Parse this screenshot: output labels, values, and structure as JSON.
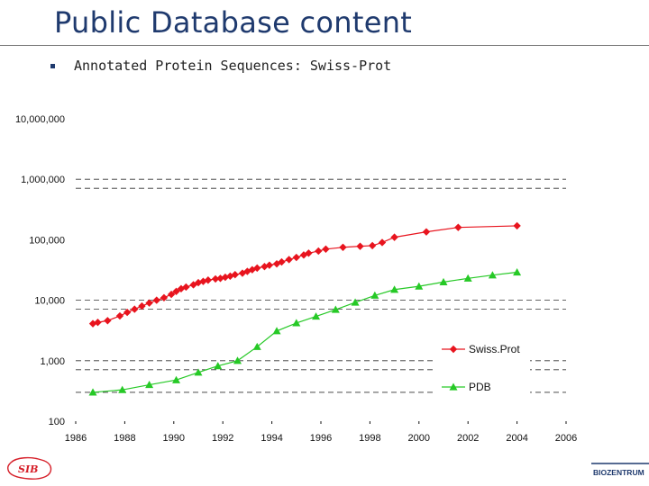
{
  "slide": {
    "title": "Public Database content",
    "bullet": "Annotated Protein Sequences: Swiss-Prot",
    "left_logo_text": "SIB",
    "right_logo_text": "BIOZENTRUM",
    "colors": {
      "title": "#1f3a6e",
      "swissprot": "#e8141e",
      "pdb": "#26c926"
    }
  },
  "chart_data": {
    "type": "line",
    "yscale": "log",
    "ylim": [
      100,
      10000000
    ],
    "xlim": [
      1986,
      2006
    ],
    "x_ticks": [
      "1986",
      "1988",
      "1990",
      "1992",
      "1994",
      "1996",
      "1998",
      "2000",
      "2002",
      "2004",
      "2006"
    ],
    "y_ticks": [
      {
        "value": 10000000,
        "label": "10,000,000"
      },
      {
        "value": 1000000,
        "label": "1,000,000"
      },
      {
        "value": 100000,
        "label": "100,000"
      },
      {
        "value": 10000,
        "label": "10,000"
      },
      {
        "value": 1000,
        "label": "1,000"
      },
      {
        "value": 100,
        "label": "100"
      }
    ],
    "grid": "dashed horizontal",
    "legend_position": "bottom-right",
    "series": [
      {
        "name": "Swiss.Prot",
        "marker": "diamond",
        "color": "#e8141e",
        "x": [
          1986.7,
          1986.9,
          1987.3,
          1987.8,
          1988.1,
          1988.4,
          1988.7,
          1989.0,
          1989.3,
          1989.6,
          1989.9,
          1990.1,
          1990.3,
          1990.5,
          1990.8,
          1991.0,
          1991.2,
          1991.4,
          1991.7,
          1991.9,
          1992.1,
          1992.3,
          1992.5,
          1992.8,
          1993.0,
          1993.2,
          1993.4,
          1993.7,
          1993.9,
          1994.2,
          1994.4,
          1994.7,
          1995.0,
          1995.3,
          1995.5,
          1995.9,
          1996.2,
          1996.9,
          1997.6,
          1998.1,
          1998.5,
          1999.0,
          2000.3,
          2001.6,
          2004.0
        ],
        "y": [
          4100,
          4300,
          4600,
          5500,
          6300,
          7100,
          8000,
          9000,
          10000,
          11000,
          12500,
          14000,
          15500,
          16500,
          18000,
          19500,
          20500,
          21500,
          22500,
          23000,
          24000,
          25000,
          26500,
          28000,
          30000,
          32000,
          34000,
          36000,
          38000,
          40000,
          43000,
          47000,
          51000,
          56000,
          60000,
          65000,
          70000,
          75000,
          78000,
          80000,
          90000,
          110000,
          135000,
          160000,
          170000
        ]
      },
      {
        "name": "PDB",
        "marker": "triangle",
        "color": "#26c926",
        "x": [
          1986.7,
          1987.9,
          1989.0,
          1990.1,
          1991.0,
          1991.8,
          1992.6,
          1993.4,
          1994.2,
          1995.0,
          1995.8,
          1996.6,
          1997.4,
          1998.2,
          1999.0,
          2000.0,
          2001.0,
          2002.0,
          2003.0,
          2004.0
        ],
        "y": [
          300,
          330,
          400,
          480,
          640,
          820,
          1000,
          1700,
          3100,
          4200,
          5400,
          7000,
          9200,
          12000,
          15000,
          17000,
          20000,
          23000,
          26000,
          29000
        ]
      }
    ]
  }
}
